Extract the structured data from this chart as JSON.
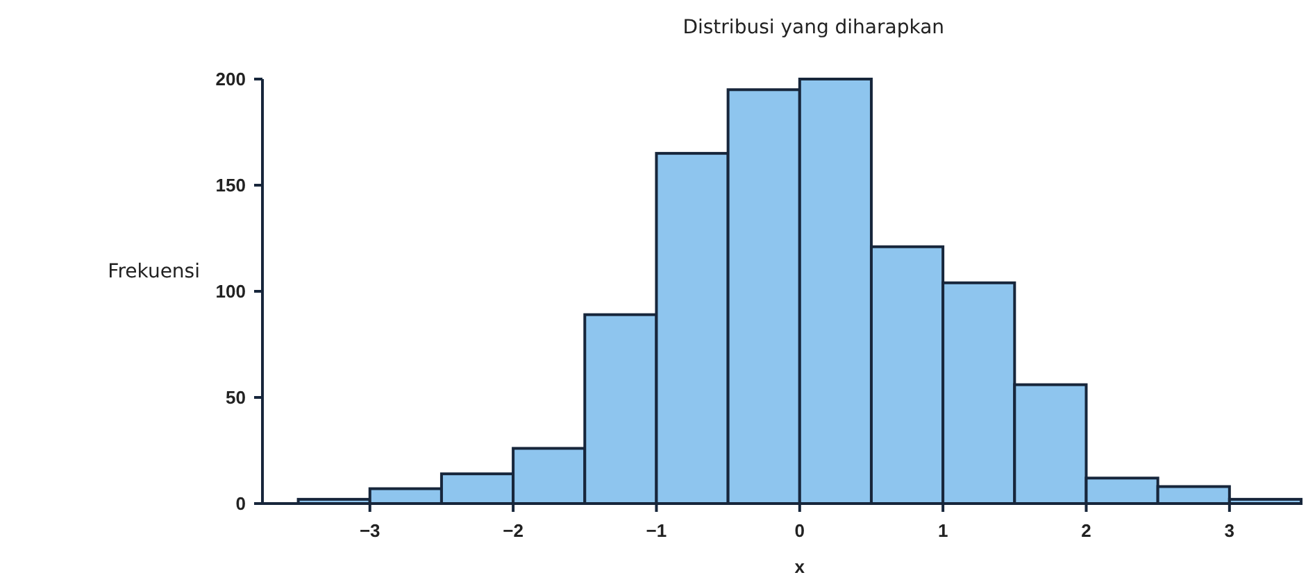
{
  "chart_data": {
    "type": "histogram",
    "title": "Distribusi yang diharapkan",
    "xlabel": "x",
    "ylabel": "Frekuensi",
    "bins": [
      -3.5,
      -3,
      -2.5,
      -2,
      -1.5,
      -1,
      -0.5,
      0,
      0.5,
      1,
      1.5,
      2,
      2.5,
      3,
      3.5
    ],
    "values": [
      2,
      7,
      14,
      26,
      89,
      165,
      195,
      200,
      121,
      104,
      56,
      12,
      8,
      2
    ],
    "color": "#8ec5ee",
    "xlim": [
      -3.75,
      3.5
    ],
    "xticks": [
      {
        "value": -3,
        "label": "−3"
      },
      {
        "value": -2,
        "label": "−2"
      },
      {
        "value": -1,
        "label": "−1"
      },
      0,
      1,
      2,
      3
    ],
    "ylim": [
      0,
      200
    ],
    "yticks": [
      0,
      50,
      100,
      150,
      200
    ],
    "grid": false
  }
}
